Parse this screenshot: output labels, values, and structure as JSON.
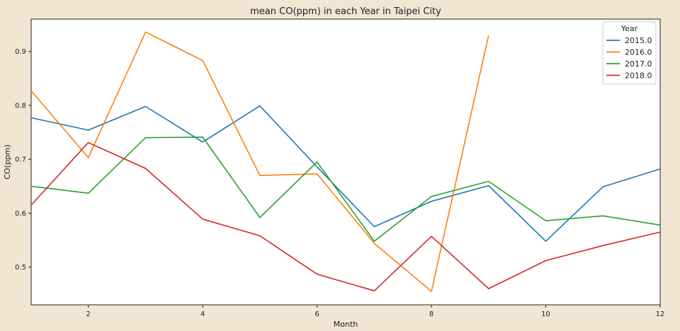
{
  "chart_data": {
    "type": "line",
    "title": "mean CO(ppm) in each Year in Taipei City",
    "xlabel": "Month",
    "ylabel": "CO(ppm)",
    "xlim": [
      1,
      12
    ],
    "ylim": [
      0.43,
      0.96
    ],
    "xticks": [
      2,
      4,
      6,
      8,
      10,
      12
    ],
    "yticks": [
      0.5,
      0.6,
      0.7,
      0.8,
      0.9
    ],
    "xtick_labels": [
      "2",
      "4",
      "6",
      "8",
      "10",
      "12"
    ],
    "ytick_labels": [
      "0.5",
      "0.6",
      "0.7",
      "0.8",
      "0.9"
    ],
    "grid": false,
    "legend": {
      "title": "Year",
      "placement": "top-right"
    },
    "series": [
      {
        "name": "2015.0",
        "color": "#1f77b4",
        "x": [
          1,
          2,
          3,
          4,
          5,
          6,
          7,
          8,
          9,
          10,
          11,
          12
        ],
        "values": [
          0.777,
          0.754,
          0.798,
          0.732,
          0.799,
          0.686,
          0.575,
          0.622,
          0.651,
          0.548,
          0.649,
          0.682
        ]
      },
      {
        "name": "2016.0",
        "color": "#ff7f0e",
        "x": [
          1,
          2,
          3,
          4,
          5,
          6,
          7,
          8,
          9
        ],
        "values": [
          0.827,
          0.703,
          0.936,
          0.883,
          0.67,
          0.673,
          0.544,
          0.455,
          0.93
        ]
      },
      {
        "name": "2017.0",
        "color": "#2ca02c",
        "x": [
          1,
          2,
          3,
          4,
          5,
          6,
          7,
          8,
          9,
          10,
          11,
          12
        ],
        "values": [
          0.65,
          0.637,
          0.74,
          0.741,
          0.592,
          0.695,
          0.548,
          0.631,
          0.659,
          0.586,
          0.595,
          0.578
        ]
      },
      {
        "name": "2018.0",
        "color": "#d62728",
        "x": [
          1,
          2,
          3,
          4,
          5,
          6,
          7,
          8,
          9,
          10,
          11,
          12
        ],
        "values": [
          0.615,
          0.731,
          0.683,
          0.589,
          0.558,
          0.487,
          0.456,
          0.557,
          0.46,
          0.512,
          0.54,
          0.565
        ]
      }
    ]
  }
}
